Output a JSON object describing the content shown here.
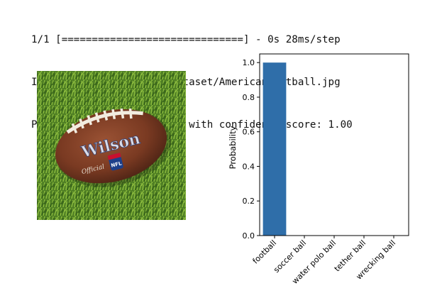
{
  "console": {
    "lines": [
      "1/1 [==============================] - 0s 28ms/step",
      "Image: ./drive/MyDrive/dataset/AmericanFootball.jpg",
      "Predicted class: football with confidence score: 1.00"
    ]
  },
  "image": {
    "logo_text": "Wilson",
    "badge_text": "NFL",
    "side_text": "Official"
  },
  "colors": {
    "bar": "#2f6ea9",
    "grass_dark": "#3f6d1e",
    "grass_light": "#8cbc3e",
    "ball": "#7a3a22"
  },
  "chart_data": {
    "type": "bar",
    "categories": [
      "football",
      "soccer ball",
      "water polo ball",
      "tether ball",
      "wrecking ball"
    ],
    "values": [
      1.0,
      0.0,
      0.0,
      0.0,
      0.0
    ],
    "xlabel": "",
    "ylabel": "Probability",
    "ylim": [
      0,
      1.05
    ],
    "yticks": [
      0.0,
      0.2,
      0.4,
      0.6,
      0.8,
      1.0
    ],
    "ytick_labels": [
      "0.0",
      "0.2",
      "0.4",
      "0.6",
      "0.8",
      "1.0"
    ],
    "grid": false,
    "legend": "none"
  }
}
